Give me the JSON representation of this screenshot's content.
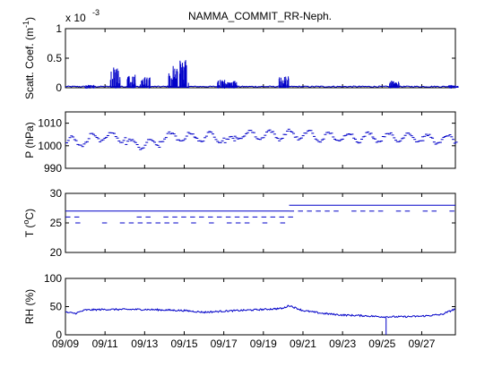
{
  "figure": {
    "title": "NAMMA_COMMIT_RR-Neph.",
    "exponent_label": "x 10",
    "exponent_power": "-3"
  },
  "colors": {
    "series": "#0000c8",
    "axes": "#000000",
    "background": "#ffffff"
  },
  "chart_data": [
    {
      "type": "scatter",
      "panel": "scatt",
      "ylabel": "Scatt. Coef. (m",
      "ylabel_sup": "-1",
      "ylabel_close": ")",
      "ylim": [
        0,
        1
      ],
      "yscale_note": "x 10^-3",
      "yticks": [
        0,
        0.5,
        1
      ],
      "ytick_labels": [
        "0",
        "0.5",
        "1"
      ],
      "xlim": [
        0,
        19.7
      ],
      "grid": false,
      "baseline": 0.02,
      "features": [
        {
          "day": 1.2,
          "value": 0.05
        },
        {
          "day": 2.5,
          "value": 0.35
        },
        {
          "day": 3.3,
          "value": 0.22
        },
        {
          "day": 4.0,
          "value": 0.18
        },
        {
          "day": 5.4,
          "value": 0.38
        },
        {
          "day": 6.0,
          "value": 0.5
        },
        {
          "day": 7.9,
          "value": 0.15
        },
        {
          "day": 8.4,
          "value": 0.12
        },
        {
          "day": 11.0,
          "value": 0.2
        },
        {
          "day": 16.6,
          "value": 0.12
        },
        {
          "day": 19.6,
          "value": 0.05
        }
      ]
    },
    {
      "type": "scatter",
      "panel": "pressure",
      "ylabel": "P (hPa)",
      "ylim": [
        990,
        1015
      ],
      "yticks": [
        990,
        1000,
        1010
      ],
      "ytick_labels": [
        "990",
        "1000",
        "1010"
      ],
      "xlim": [
        0,
        19.7
      ],
      "grid": false,
      "mean_value": 1003,
      "diurnal_amplitude": 2,
      "segments": [
        {
          "start": 0.0,
          "end": 1.2,
          "level": 1002
        },
        {
          "start": 1.2,
          "end": 3.0,
          "level": 1004
        },
        {
          "start": 3.0,
          "end": 4.7,
          "level": 1001
        },
        {
          "start": 4.7,
          "end": 6.5,
          "level": 1004
        },
        {
          "start": 6.5,
          "end": 8.0,
          "level": 1004
        },
        {
          "start": 8.0,
          "end": 8.5,
          "level": 1002
        },
        {
          "start": 8.5,
          "end": 10.5,
          "level": 1005
        },
        {
          "start": 10.5,
          "end": 12.5,
          "level": 1005
        },
        {
          "start": 12.5,
          "end": 15.5,
          "level": 1004
        },
        {
          "start": 15.5,
          "end": 18.0,
          "level": 1004
        },
        {
          "start": 18.0,
          "end": 19.7,
          "level": 1003
        }
      ]
    },
    {
      "type": "scatter",
      "panel": "temperature",
      "ylabel": "T (",
      "ylabel_sup": "o",
      "ylabel_close": "C)",
      "ylim": [
        20,
        30
      ],
      "yticks": [
        20,
        25,
        30
      ],
      "ytick_labels": [
        "20",
        "25",
        "30"
      ],
      "xlim": [
        0,
        19.7
      ],
      "grid": false,
      "levels": [
        {
          "start": 0.0,
          "end": 11.3,
          "value": 27,
          "dashed": false
        },
        {
          "start": 0.0,
          "end": 11.3,
          "value": 26,
          "dashed": true
        },
        {
          "start": 11.3,
          "end": 19.7,
          "value": 28,
          "dashed": false
        },
        {
          "start": 11.3,
          "end": 19.7,
          "value": 27,
          "dashed": true
        },
        {
          "start": 0.5,
          "end": 11.0,
          "value": 25,
          "dashed": true
        }
      ]
    },
    {
      "type": "scatter",
      "panel": "rh",
      "ylabel": "RH (%)",
      "ylim": [
        0,
        100
      ],
      "yticks": [
        0,
        50,
        100
      ],
      "ytick_labels": [
        "0",
        "50",
        "100"
      ],
      "xlim": [
        0,
        19.7
      ],
      "grid": false,
      "trend": [
        {
          "day": 0.0,
          "value": 40
        },
        {
          "day": 0.5,
          "value": 38
        },
        {
          "day": 1.0,
          "value": 44
        },
        {
          "day": 2.0,
          "value": 45
        },
        {
          "day": 4.0,
          "value": 45
        },
        {
          "day": 6.0,
          "value": 43
        },
        {
          "day": 7.0,
          "value": 40
        },
        {
          "day": 8.0,
          "value": 42
        },
        {
          "day": 10.0,
          "value": 45
        },
        {
          "day": 11.0,
          "value": 47
        },
        {
          "day": 11.3,
          "value": 52
        },
        {
          "day": 12.0,
          "value": 43
        },
        {
          "day": 13.0,
          "value": 38
        },
        {
          "day": 14.0,
          "value": 35
        },
        {
          "day": 15.0,
          "value": 34
        },
        {
          "day": 16.0,
          "value": 32
        },
        {
          "day": 17.0,
          "value": 32
        },
        {
          "day": 18.0,
          "value": 33
        },
        {
          "day": 19.0,
          "value": 36
        },
        {
          "day": 19.7,
          "value": 46
        }
      ],
      "dropout": {
        "day": 16.2,
        "from": 30,
        "to": 0
      }
    }
  ],
  "x_axis": {
    "tick_labels": [
      "09/09",
      "09/11",
      "09/13",
      "09/15",
      "09/17",
      "09/19",
      "09/21",
      "09/23",
      "09/25",
      "09/27"
    ],
    "tick_days": [
      0,
      2,
      4,
      6,
      8,
      10,
      12,
      14,
      16,
      18
    ]
  }
}
